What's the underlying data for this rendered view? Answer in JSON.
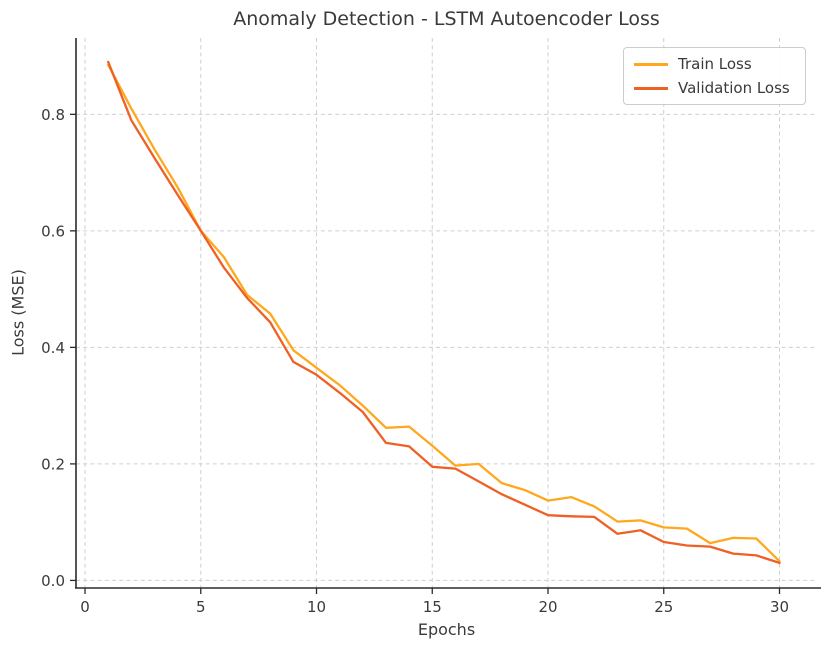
{
  "chart_data": {
    "type": "line",
    "title": "Anomaly Detection - LSTM Autoencoder Loss",
    "xlabel": "Epochs",
    "ylabel": "Loss (MSE)",
    "x": [
      1,
      2,
      3,
      4,
      5,
      6,
      7,
      8,
      9,
      10,
      11,
      12,
      13,
      14,
      15,
      16,
      17,
      18,
      19,
      20,
      21,
      22,
      23,
      24,
      25,
      26,
      27,
      28,
      29,
      30
    ],
    "series": [
      {
        "name": "Train Loss",
        "color": "#ffa81e",
        "values": [
          0.885,
          0.81,
          0.74,
          0.675,
          0.6,
          0.555,
          0.49,
          0.458,
          0.395,
          0.365,
          0.335,
          0.3,
          0.262,
          0.264,
          0.231,
          0.197,
          0.2,
          0.167,
          0.155,
          0.137,
          0.143,
          0.127,
          0.101,
          0.103,
          0.091,
          0.089,
          0.064,
          0.073,
          0.072,
          0.033
        ]
      },
      {
        "name": "Validation Loss",
        "color": "#ee6024",
        "values": [
          0.89,
          0.79,
          0.725,
          0.662,
          0.6,
          0.537,
          0.485,
          0.443,
          0.375,
          0.353,
          0.322,
          0.289,
          0.236,
          0.23,
          0.195,
          0.192,
          0.17,
          0.148,
          0.13,
          0.112,
          0.11,
          0.109,
          0.08,
          0.086,
          0.066,
          0.06,
          0.058,
          0.046,
          0.043,
          0.03
        ]
      }
    ],
    "xticks": {
      "values": [
        0,
        5,
        10,
        15,
        20,
        25,
        30
      ],
      "labels": [
        "0",
        "5",
        "10",
        "15",
        "20",
        "25",
        "30"
      ]
    },
    "yticks": {
      "values": [
        0.0,
        0.2,
        0.4,
        0.6,
        0.8
      ],
      "labels": [
        "0.0",
        "0.2",
        "0.4",
        "0.6",
        "0.8"
      ]
    },
    "xlim": [
      -0.39,
      31.62
    ],
    "ylim": [
      -0.013,
      0.931
    ],
    "grid": {
      "on": true,
      "style": "dashed",
      "color": "#cfcfcf"
    },
    "legend": {
      "position": "upper-right"
    }
  },
  "colors": {
    "spine": "#2b2b2b",
    "tick": "#2b2b2b",
    "text": "#3a3a3a",
    "background": "#ffffff"
  }
}
